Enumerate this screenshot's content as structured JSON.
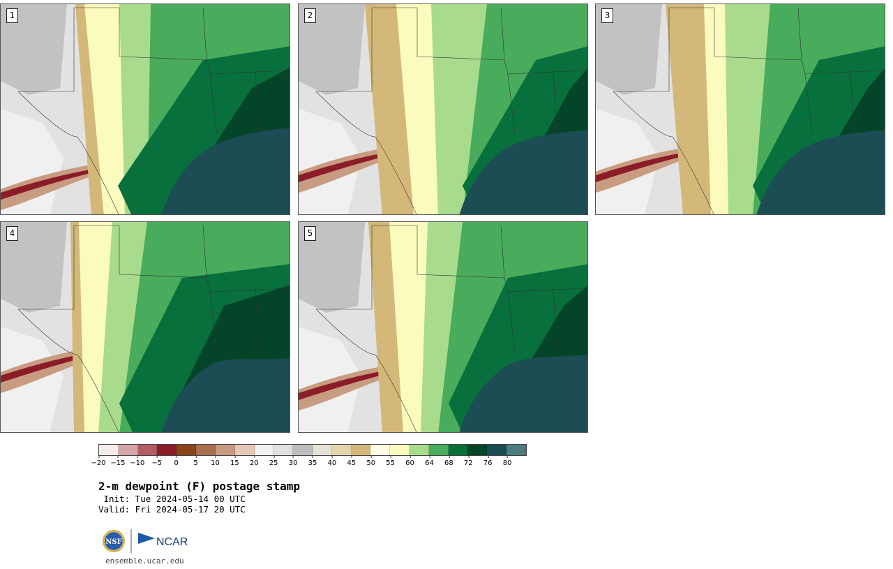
{
  "panels": [
    {
      "label": "1",
      "variant": 0
    },
    {
      "label": "2",
      "variant": 1
    },
    {
      "label": "3",
      "variant": 2
    },
    {
      "label": "4",
      "variant": 3
    },
    {
      "label": "5",
      "variant": 4
    }
  ],
  "legend": {
    "colors": [
      "#f6ecec",
      "#d4a4a8",
      "#b45c64",
      "#8b1c28",
      "#8a4518",
      "#a86e4e",
      "#c89c80",
      "#e4c8b8",
      "#f2f2f2",
      "#e0e0e0",
      "#bdbdbd",
      "#e6e2d6",
      "#e4d4aa",
      "#d4b87a",
      "#fdfde6",
      "#fbfbbe",
      "#a8dc8c",
      "#48ac5c",
      "#08703c",
      "#044428",
      "#1c4c54",
      "#4c7c80"
    ],
    "ticks": [
      "−20",
      "−15",
      "−10",
      "−5",
      "0",
      "5",
      "10",
      "15",
      "20",
      "25",
      "30",
      "35",
      "40",
      "45",
      "50",
      "55",
      "60",
      "64",
      "68",
      "72",
      "76",
      "80"
    ]
  },
  "title": "2-m dewpoint (F) postage stamp",
  "init": " Init: Tue 2024-05-14 00 UTC",
  "valid": "Valid: Fri 2024-05-17 20 UTC",
  "logo": {
    "nsf": "NSF",
    "ncar": "NCAR"
  },
  "site": "ensemble.ucar.edu"
}
